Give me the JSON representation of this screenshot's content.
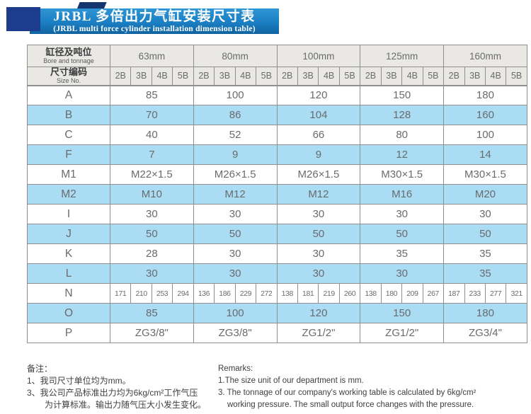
{
  "colors": {
    "banner_blue_top": "#2e95d4",
    "banner_blue_bottom": "#11639f",
    "navy_square": "#1d3c8e",
    "ribbon_fold": "#16346f",
    "header_bg": "#e9e8e4",
    "highlight_row": "#aadcf3",
    "border": "#8f8f8f",
    "text": "#6a6b6d"
  },
  "title": {
    "main": "JRBL 多倍出力气缸安装尺寸表",
    "sub": "(JRBL multi force cylinder installation dimension table)"
  },
  "table": {
    "corner": {
      "cn": "缸径及吨位",
      "en": "Bore and tonnage"
    },
    "size_no": {
      "cn": "尺寸编码",
      "en": "Size No."
    },
    "groups": [
      "63mm",
      "80mm",
      "100mm",
      "125mm",
      "160mm"
    ],
    "sub_headers": [
      "2B",
      "3B",
      "4B",
      "5B"
    ],
    "rows": [
      {
        "label": "A",
        "highlight": false,
        "values": [
          "85",
          "100",
          "120",
          "150",
          "180"
        ]
      },
      {
        "label": "B",
        "highlight": true,
        "values": [
          "70",
          "86",
          "104",
          "128",
          "160"
        ]
      },
      {
        "label": "C",
        "highlight": false,
        "values": [
          "40",
          "52",
          "66",
          "80",
          "100"
        ]
      },
      {
        "label": "F",
        "highlight": true,
        "values": [
          "7",
          "9",
          "9",
          "12",
          "14"
        ]
      },
      {
        "label": "M1",
        "highlight": false,
        "values": [
          "M22×1.5",
          "M26×1.5",
          "M26×1.5",
          "M30×1.5",
          "M30×1.5"
        ]
      },
      {
        "label": "M2",
        "highlight": true,
        "values": [
          "M10",
          "M12",
          "M12",
          "M16",
          "M20"
        ]
      },
      {
        "label": "I",
        "highlight": false,
        "values": [
          "30",
          "30",
          "30",
          "30",
          "30"
        ]
      },
      {
        "label": "J",
        "highlight": true,
        "values": [
          "50",
          "50",
          "50",
          "50",
          "50"
        ]
      },
      {
        "label": "K",
        "highlight": false,
        "values": [
          "28",
          "30",
          "30",
          "35",
          "35"
        ]
      },
      {
        "label": "L",
        "highlight": true,
        "values": [
          "30",
          "30",
          "30",
          "30",
          "35"
        ]
      },
      {
        "label": "N",
        "highlight": false,
        "values": [
          "171",
          "210",
          "253",
          "294",
          "136",
          "186",
          "229",
          "272",
          "138",
          "181",
          "219",
          "260",
          "138",
          "180",
          "209",
          "267",
          "187",
          "233",
          "277",
          "321"
        ]
      },
      {
        "label": "O",
        "highlight": true,
        "values": [
          "85",
          "100",
          "120",
          "150",
          "180"
        ]
      },
      {
        "label": "P",
        "highlight": false,
        "values": [
          "ZG3/8\"",
          "ZG3/8\"",
          "ZG1/2\"",
          "ZG1/2\"",
          "ZG3/4\""
        ]
      }
    ]
  },
  "notes_cn": {
    "heading": "备注：",
    "lines": [
      "1、我司尺寸单位均为mm。",
      "3、我公司产品标准出力均为6kg/cm²工作气压",
      "为计算标准。输出力随气压大小发生变化。"
    ]
  },
  "notes_en": {
    "heading": "Remarks:",
    "lines": [
      "1.The size unit of our department is mm.",
      "3. The tonnage of our company's working table is calculated by 6kg/cm²",
      "working pressure. The small output force changes with the pressure."
    ]
  }
}
